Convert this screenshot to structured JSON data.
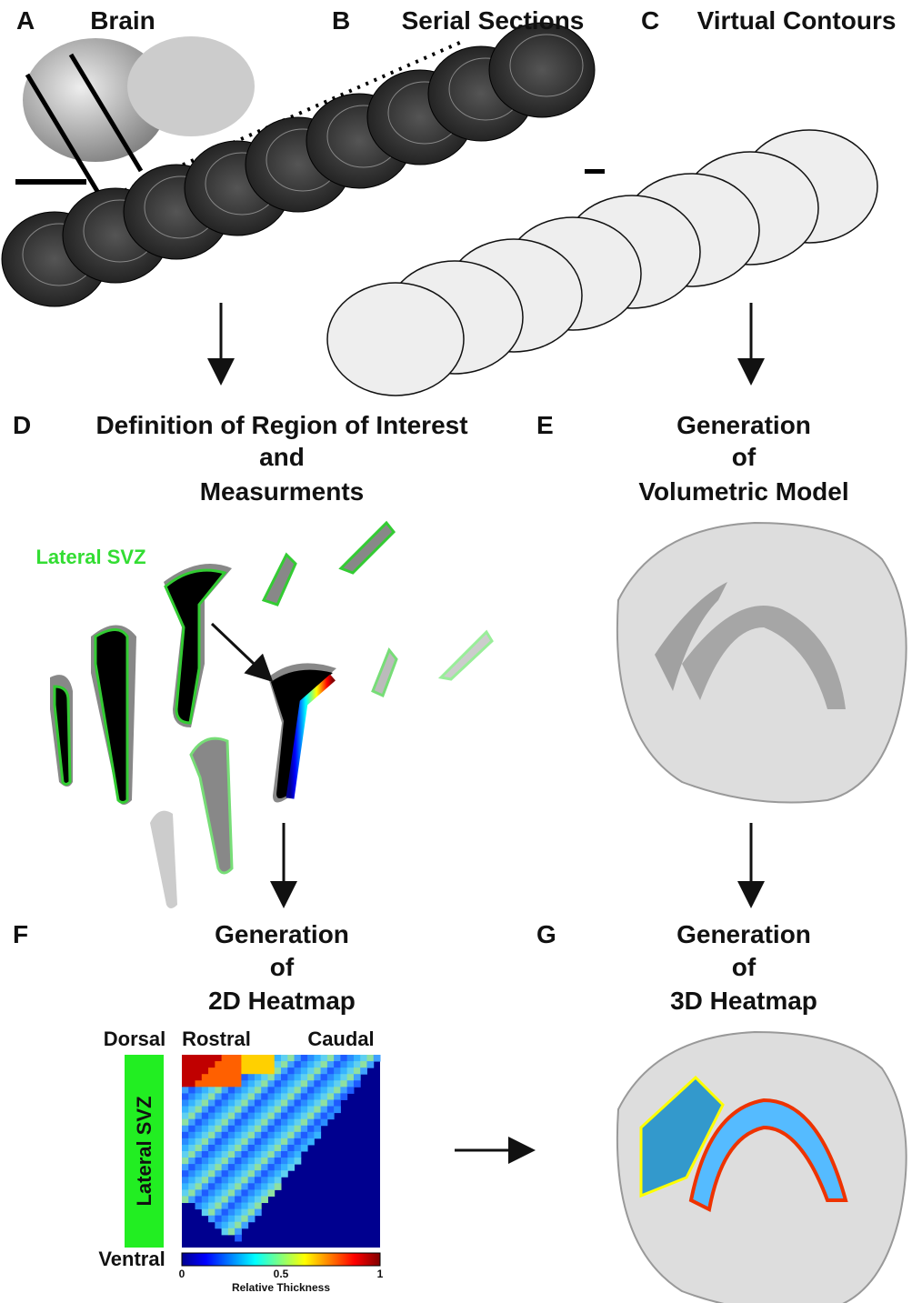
{
  "panels": [
    {
      "letter": "A",
      "title": [
        "Brain"
      ]
    },
    {
      "letter": "B",
      "title": [
        "Serial Sections"
      ]
    },
    {
      "letter": "C",
      "title": [
        "Virtual Contours"
      ]
    },
    {
      "letter": "D",
      "title": [
        "Definition of Region of Interest",
        "and",
        "Measurments"
      ],
      "annotation": "Lateral SVZ"
    },
    {
      "letter": "E",
      "title": [
        "Generation",
        "of",
        "Volumetric Model"
      ]
    },
    {
      "letter": "F",
      "title": [
        "Generation",
        "of",
        "2D Heatmap"
      ],
      "heatmap": {
        "left_label": "Dorsal",
        "bottom_label": "Ventral",
        "top_left": "Rostral",
        "top_right": "Caudal",
        "side_label": "Lateral SVZ",
        "colorbar": {
          "ticks": [
            "0",
            "0.5",
            "1"
          ],
          "label": "Relative Thickness"
        }
      }
    },
    {
      "letter": "G",
      "title": [
        "Generation",
        "of",
        "3D Heatmap"
      ]
    }
  ]
}
